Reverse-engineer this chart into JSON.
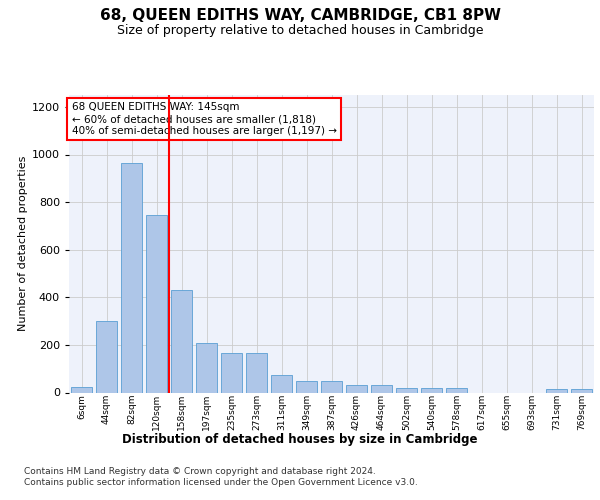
{
  "title": "68, QUEEN EDITHS WAY, CAMBRIDGE, CB1 8PW",
  "subtitle": "Size of property relative to detached houses in Cambridge",
  "xlabel": "Distribution of detached houses by size in Cambridge",
  "ylabel": "Number of detached properties",
  "categories": [
    "6sqm",
    "44sqm",
    "82sqm",
    "120sqm",
    "158sqm",
    "197sqm",
    "235sqm",
    "273sqm",
    "311sqm",
    "349sqm",
    "387sqm",
    "426sqm",
    "464sqm",
    "502sqm",
    "540sqm",
    "578sqm",
    "617sqm",
    "655sqm",
    "693sqm",
    "731sqm",
    "769sqm"
  ],
  "values": [
    25,
    300,
    965,
    745,
    430,
    210,
    165,
    165,
    75,
    48,
    48,
    30,
    30,
    17,
    17,
    17,
    0,
    0,
    0,
    15,
    15
  ],
  "bar_color": "#aec6e8",
  "bar_edge_color": "#5a9fd4",
  "vline_x": 3.5,
  "vline_color": "red",
  "annotation_text": "68 QUEEN EDITHS WAY: 145sqm\n← 60% of detached houses are smaller (1,818)\n40% of semi-detached houses are larger (1,197) →",
  "annotation_box_color": "white",
  "annotation_box_edge_color": "red",
  "ylim": [
    0,
    1250
  ],
  "yticks": [
    0,
    200,
    400,
    600,
    800,
    1000,
    1200
  ],
  "footer_text": "Contains HM Land Registry data © Crown copyright and database right 2024.\nContains public sector information licensed under the Open Government Licence v3.0.",
  "bg_color": "#eef2fb",
  "grid_color": "#cccccc",
  "title_fontsize": 11,
  "subtitle_fontsize": 9,
  "ylabel_fontsize": 8,
  "xtick_fontsize": 6.5,
  "ytick_fontsize": 8,
  "xlabel_fontsize": 8.5,
  "footer_fontsize": 6.5
}
